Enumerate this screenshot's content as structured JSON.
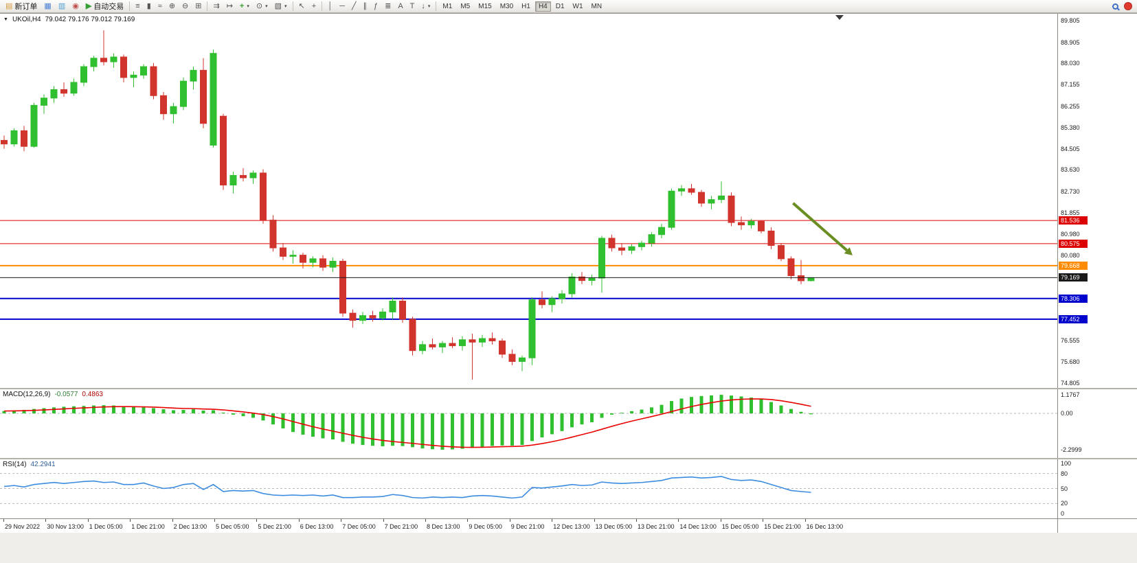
{
  "colors": {
    "bull": "#2fbf2f",
    "bear": "#d0342c",
    "macd_bar": "#2fbf2f",
    "macd_signal": "#e80000",
    "rsi_line": "#3b8be0",
    "level_red": "#dd0000",
    "level_orange": "#ff8c00",
    "level_blue": "#0000cc",
    "price_line": "#1a1a1a",
    "arrow": "#6b8e23"
  },
  "icons": {
    "triangle_down": "▼",
    "new_order": "▤",
    "chart_window": "▦",
    "market_depth": "▥",
    "alerts": "◉",
    "autotrade_play": "▶",
    "bars": "≡",
    "candles": "▮",
    "line_chart": "≈",
    "zoom_in": "⊕",
    "zoom_out": "⊖",
    "tile_windows": "⊞",
    "auto_scroll": "⇉",
    "chart_shift": "↦",
    "add_indicator": "+",
    "periods": "⊙",
    "templates": "▧",
    "cursor": "↖",
    "crosshair": "+",
    "vline": "│",
    "hline": "─",
    "trendline": "╱",
    "channel": "∥",
    "fibonacci": "ƒ",
    "cycles": "≣",
    "text": "A",
    "text_label": "T",
    "arrows": "↓",
    "dropdown": "▾"
  },
  "toolbar": {
    "new_order_label": "新订单",
    "autotrade_label": "自动交易",
    "timeframes": [
      "M1",
      "M5",
      "M15",
      "M30",
      "H1",
      "H4",
      "D1",
      "W1",
      "MN"
    ],
    "active_timeframe": "H4"
  },
  "chart": {
    "title": "UKOil,H4",
    "ohlc": "79.042 79.176 79.012 79.169"
  },
  "indicators": {
    "macd": {
      "label": "MACD(12,26,9)",
      "value_main": "-0.0577",
      "value_signal": "0.4863"
    },
    "rsi": {
      "label": "RSI(14)",
      "value": "42.2941"
    }
  },
  "chart_data": [
    {
      "name": "price",
      "type": "candlestick",
      "symbol": "UKOil",
      "period": "H4",
      "ylim": [
        74.805,
        89.805
      ],
      "y_axis_labels": [
        "89.805",
        "88.905",
        "88.030",
        "87.155",
        "86.255",
        "85.380",
        "84.505",
        "83.630",
        "82.730",
        "81.855",
        "80.980",
        "80.080",
        "76.555",
        "75.680",
        "74.805"
      ],
      "ohlc_format": [
        "open",
        "high",
        "low",
        "close"
      ],
      "candles": [
        [
          84.85,
          85.05,
          84.5,
          84.7
        ],
        [
          84.7,
          85.35,
          84.6,
          85.25
        ],
        [
          85.25,
          85.45,
          84.4,
          84.6
        ],
        [
          84.6,
          86.4,
          84.55,
          86.3
        ],
        [
          86.3,
          86.75,
          85.95,
          86.6
        ],
        [
          86.6,
          87.1,
          86.4,
          86.95
        ],
        [
          86.95,
          87.25,
          86.65,
          86.8
        ],
        [
          86.8,
          87.4,
          86.7,
          87.25
        ],
        [
          87.25,
          88.0,
          87.1,
          87.9
        ],
        [
          87.9,
          88.35,
          87.7,
          88.25
        ],
        [
          88.25,
          89.4,
          87.95,
          88.1
        ],
        [
          88.1,
          88.45,
          87.85,
          88.3
        ],
        [
          88.3,
          88.4,
          87.25,
          87.45
        ],
        [
          87.45,
          87.7,
          87.05,
          87.55
        ],
        [
          87.55,
          88.0,
          87.4,
          87.9
        ],
        [
          87.9,
          88.05,
          86.55,
          86.7
        ],
        [
          86.7,
          86.85,
          85.7,
          85.95
        ],
        [
          85.95,
          86.4,
          85.55,
          86.25
        ],
        [
          86.25,
          87.45,
          86.1,
          87.3
        ],
        [
          87.3,
          87.9,
          86.95,
          87.75
        ],
        [
          87.75,
          88.25,
          85.35,
          85.55
        ],
        [
          84.65,
          88.6,
          84.55,
          88.45
        ],
        [
          85.85,
          85.95,
          82.8,
          83.0
        ],
        [
          83.0,
          83.55,
          82.65,
          83.4
        ],
        [
          83.4,
          83.7,
          83.15,
          83.3
        ],
        [
          83.3,
          83.6,
          83.05,
          83.5
        ],
        [
          83.5,
          83.65,
          81.4,
          81.55
        ],
        [
          81.55,
          81.75,
          80.25,
          80.4
        ],
        [
          80.4,
          80.6,
          79.9,
          80.05
        ],
        [
          80.05,
          80.3,
          79.75,
          80.1
        ],
        [
          80.1,
          80.2,
          79.55,
          79.8
        ],
        [
          79.8,
          80.05,
          79.6,
          79.95
        ],
        [
          79.95,
          80.1,
          79.45,
          79.6
        ],
        [
          79.6,
          80.0,
          79.4,
          79.85
        ],
        [
          79.85,
          79.95,
          77.55,
          77.7
        ],
        [
          77.7,
          77.85,
          77.1,
          77.4
        ],
        [
          77.4,
          77.75,
          77.25,
          77.6
        ],
        [
          77.6,
          77.8,
          77.35,
          77.5
        ],
        [
          77.5,
          77.9,
          77.4,
          77.75
        ],
        [
          77.75,
          78.35,
          77.45,
          78.2
        ],
        [
          78.2,
          78.35,
          77.3,
          77.45
        ],
        [
          77.45,
          77.55,
          75.95,
          76.15
        ],
        [
          76.15,
          76.55,
          76.0,
          76.4
        ],
        [
          76.4,
          76.65,
          76.2,
          76.3
        ],
        [
          76.3,
          76.55,
          76.05,
          76.45
        ],
        [
          76.45,
          76.7,
          76.25,
          76.35
        ],
        [
          76.35,
          76.75,
          76.15,
          76.6
        ],
        [
          76.6,
          76.85,
          74.95,
          76.5
        ],
        [
          76.5,
          76.8,
          76.3,
          76.65
        ],
        [
          76.65,
          76.9,
          76.4,
          76.55
        ],
        [
          76.55,
          76.65,
          75.85,
          76.0
        ],
        [
          76.0,
          76.2,
          75.55,
          75.7
        ],
        [
          75.7,
          75.95,
          75.3,
          75.85
        ],
        [
          75.85,
          78.35,
          75.55,
          78.25
        ],
        [
          78.25,
          78.6,
          77.9,
          78.05
        ],
        [
          78.05,
          78.4,
          77.75,
          78.3
        ],
        [
          78.3,
          78.65,
          78.1,
          78.5
        ],
        [
          78.5,
          79.35,
          78.35,
          79.2
        ],
        [
          79.2,
          79.4,
          78.9,
          79.05
        ],
        [
          79.05,
          79.3,
          78.85,
          79.15
        ],
        [
          79.15,
          80.9,
          78.55,
          80.8
        ],
        [
          80.8,
          80.95,
          80.25,
          80.4
        ],
        [
          80.4,
          80.6,
          80.1,
          80.3
        ],
        [
          80.3,
          80.55,
          80.15,
          80.45
        ],
        [
          80.45,
          80.7,
          80.3,
          80.6
        ],
        [
          80.6,
          81.05,
          80.45,
          80.95
        ],
        [
          80.95,
          81.4,
          80.8,
          81.25
        ],
        [
          81.25,
          82.85,
          81.15,
          82.75
        ],
        [
          82.75,
          83.0,
          82.55,
          82.85
        ],
        [
          82.85,
          83.05,
          82.6,
          82.7
        ],
        [
          82.7,
          82.8,
          82.1,
          82.25
        ],
        [
          82.25,
          82.55,
          82.0,
          82.4
        ],
        [
          82.4,
          83.15,
          82.25,
          82.55
        ],
        [
          82.55,
          82.7,
          81.3,
          81.45
        ],
        [
          81.45,
          81.7,
          81.15,
          81.35
        ],
        [
          81.35,
          81.6,
          81.2,
          81.5
        ],
        [
          81.5,
          81.55,
          81.0,
          81.1
        ],
        [
          81.1,
          81.25,
          80.35,
          80.5
        ],
        [
          80.5,
          80.6,
          79.85,
          79.95
        ],
        [
          79.95,
          80.05,
          79.1,
          79.25
        ],
        [
          79.25,
          79.9,
          78.9,
          79.04
        ],
        [
          79.042,
          79.176,
          79.012,
          79.169
        ]
      ],
      "levels": [
        {
          "value": 81.536,
          "label": "81.536",
          "color_key": "level_red",
          "width": 1
        },
        {
          "value": 80.575,
          "label": "80.575",
          "color_key": "level_red",
          "width": 1
        },
        {
          "value": 79.668,
          "label": "79.668",
          "color_key": "level_orange",
          "width": 2
        },
        {
          "value": 78.306,
          "label": "78.306",
          "color_key": "level_blue",
          "width": 2
        },
        {
          "value": 77.452,
          "label": "77.452",
          "color_key": "level_blue",
          "width": 2
        }
      ],
      "price_line": {
        "value": 79.169,
        "label": "79.169"
      },
      "arrow_annotation": {
        "from_bar": 79.2,
        "from_price": 82.25,
        "to_bar": 84.6,
        "to_price": 80.3
      },
      "x_axis_labels": [
        "29 Nov 2022",
        "30 Nov 13:00",
        "1 Dec 05:00",
        "1 Dec 21:00",
        "2 Dec 13:00",
        "5 Dec 05:00",
        "5 Dec 21:00",
        "6 Dec 13:00",
        "7 Dec 05:00",
        "7 Dec 21:00",
        "8 Dec 13:00",
        "9 Dec 05:00",
        "9 Dec 21:00",
        "12 Dec 13:00",
        "13 Dec 05:00",
        "13 Dec 21:00",
        "14 Dec 13:00",
        "15 Dec 05:00",
        "15 Dec 21:00",
        "16 Dec 13:00"
      ]
    },
    {
      "name": "macd",
      "type": "bar",
      "title": "MACD(12,26,9)",
      "ylim": [
        -2.2999,
        1.1767
      ],
      "y_axis_labels": [
        "1.1767",
        "0.00",
        "-2.2999"
      ],
      "signal_period": 9,
      "histogram": [
        0.15,
        0.18,
        0.22,
        0.28,
        0.33,
        0.38,
        0.42,
        0.45,
        0.47,
        0.5,
        0.52,
        0.5,
        0.45,
        0.4,
        0.38,
        0.33,
        0.26,
        0.2,
        0.22,
        0.26,
        0.18,
        0.2,
        0.05,
        -0.08,
        -0.18,
        -0.28,
        -0.45,
        -0.7,
        -0.95,
        -1.18,
        -1.35,
        -1.48,
        -1.58,
        -1.65,
        -1.8,
        -1.92,
        -2.0,
        -2.05,
        -2.08,
        -2.05,
        -2.07,
        -2.14,
        -2.22,
        -2.27,
        -2.3,
        -2.28,
        -2.24,
        -2.18,
        -2.12,
        -2.06,
        -2.03,
        -2.04,
        -2.0,
        -1.75,
        -1.52,
        -1.32,
        -1.12,
        -0.88,
        -0.7,
        -0.56,
        -0.28,
        -0.08,
        0.04,
        0.14,
        0.24,
        0.38,
        0.54,
        0.78,
        0.94,
        1.04,
        1.1,
        1.14,
        1.1767,
        1.13,
        1.07,
        1.0,
        0.9,
        0.72,
        0.5,
        0.28,
        0.1,
        -0.0577
      ]
    },
    {
      "name": "rsi",
      "type": "line",
      "title": "RSI(14)",
      "ylim": [
        0,
        100
      ],
      "levels": [
        80,
        50,
        20
      ],
      "y_axis_labels": [
        "100",
        "80",
        "50",
        "20",
        "0"
      ],
      "values": [
        54,
        56,
        53,
        58,
        60,
        62,
        60,
        62,
        64,
        65,
        62,
        63,
        58,
        58,
        61,
        55,
        50,
        52,
        58,
        60,
        48,
        58,
        44,
        46,
        45,
        46,
        40,
        37,
        36,
        37,
        36,
        37,
        35,
        37,
        32,
        32,
        33,
        33,
        34,
        38,
        36,
        32,
        31,
        33,
        32,
        33,
        32,
        35,
        36,
        35,
        33,
        31,
        33,
        52,
        51,
        53,
        55,
        58,
        56,
        57,
        63,
        61,
        60,
        61,
        62,
        64,
        66,
        71,
        72,
        73,
        71,
        72,
        74,
        68,
        66,
        67,
        64,
        58,
        52,
        46,
        44,
        42.2941
      ]
    }
  ]
}
